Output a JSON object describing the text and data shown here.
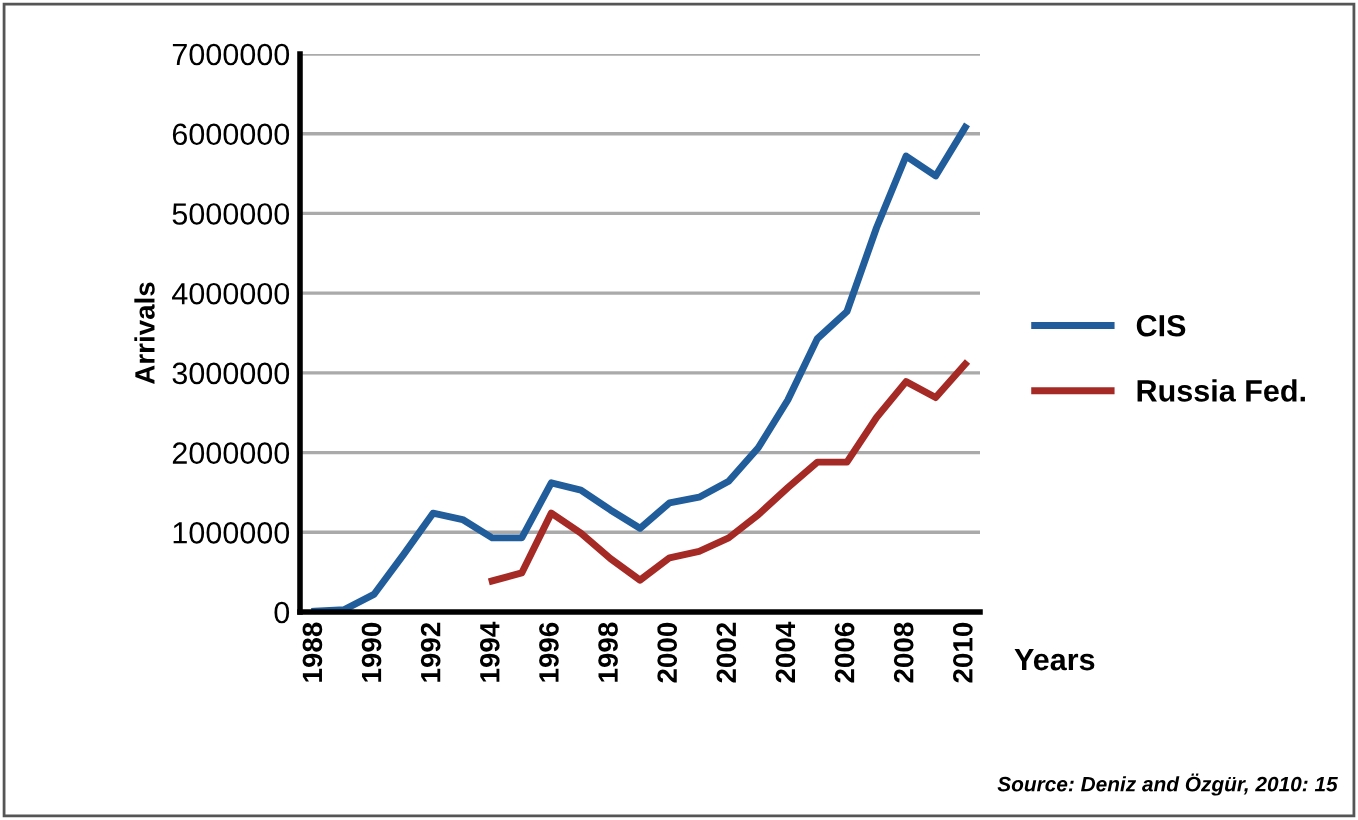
{
  "chart_data": {
    "type": "line",
    "xlabel": "Years",
    "ylabel": "Arrivals",
    "categories": [
      "1988",
      null,
      "1990",
      null,
      "1992",
      null,
      "1994",
      null,
      "1996",
      null,
      "1998",
      null,
      "2000",
      null,
      "2002",
      null,
      "2004",
      null,
      "2006",
      null,
      "2008",
      null,
      "2010"
    ],
    "series": [
      {
        "name": "CIS",
        "color": "#215d9b",
        "values": [
          10000,
          30000,
          220000,
          720000,
          1240000,
          1160000,
          930000,
          930000,
          1620000,
          1530000,
          1280000,
          1050000,
          1370000,
          1440000,
          1640000,
          2060000,
          2660000,
          3430000,
          3770000,
          4820000,
          5720000,
          5470000,
          6080000
        ]
      },
      {
        "name": "Russia Fed.",
        "color": "#a52a25",
        "values": [
          null,
          null,
          null,
          null,
          null,
          null,
          390000,
          490000,
          1240000,
          990000,
          670000,
          400000,
          680000,
          760000,
          930000,
          1220000,
          1560000,
          1880000,
          1880000,
          2440000,
          2890000,
          2690000,
          3110000
        ]
      }
    ],
    "ylim": [
      0,
      7000000
    ],
    "yticks": [
      0,
      1000000,
      2000000,
      3000000,
      4000000,
      5000000,
      6000000,
      7000000
    ],
    "grid": "y",
    "legend": "right",
    "marker": "none",
    "line_style": "solid",
    "annotations": [
      "Source: Deniz and Özgür, 2010: 15"
    ]
  }
}
